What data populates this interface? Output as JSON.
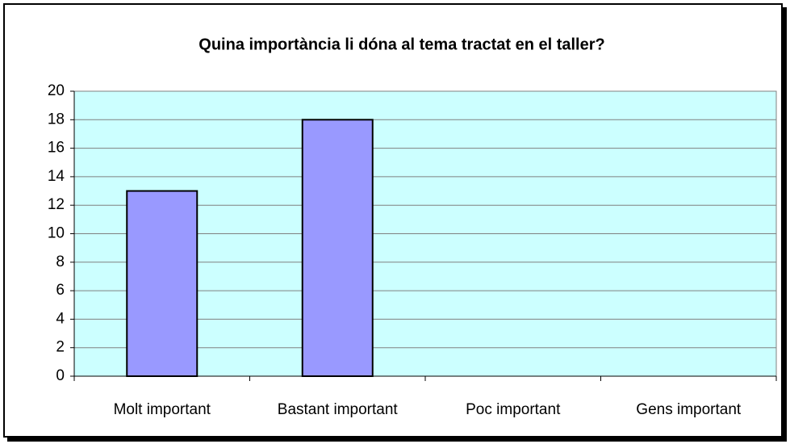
{
  "chart_data": {
    "type": "bar",
    "title": "Quina importància li dóna al tema tractat en el taller?",
    "categories": [
      "Molt important",
      "Bastant important",
      "Poc important",
      "Gens important"
    ],
    "values": [
      13,
      18,
      0,
      0
    ],
    "color": "#9999ff",
    "ylim": [
      0,
      20
    ],
    "yticks": [
      0,
      2,
      4,
      6,
      8,
      10,
      12,
      14,
      16,
      18,
      20
    ],
    "grid": true
  }
}
